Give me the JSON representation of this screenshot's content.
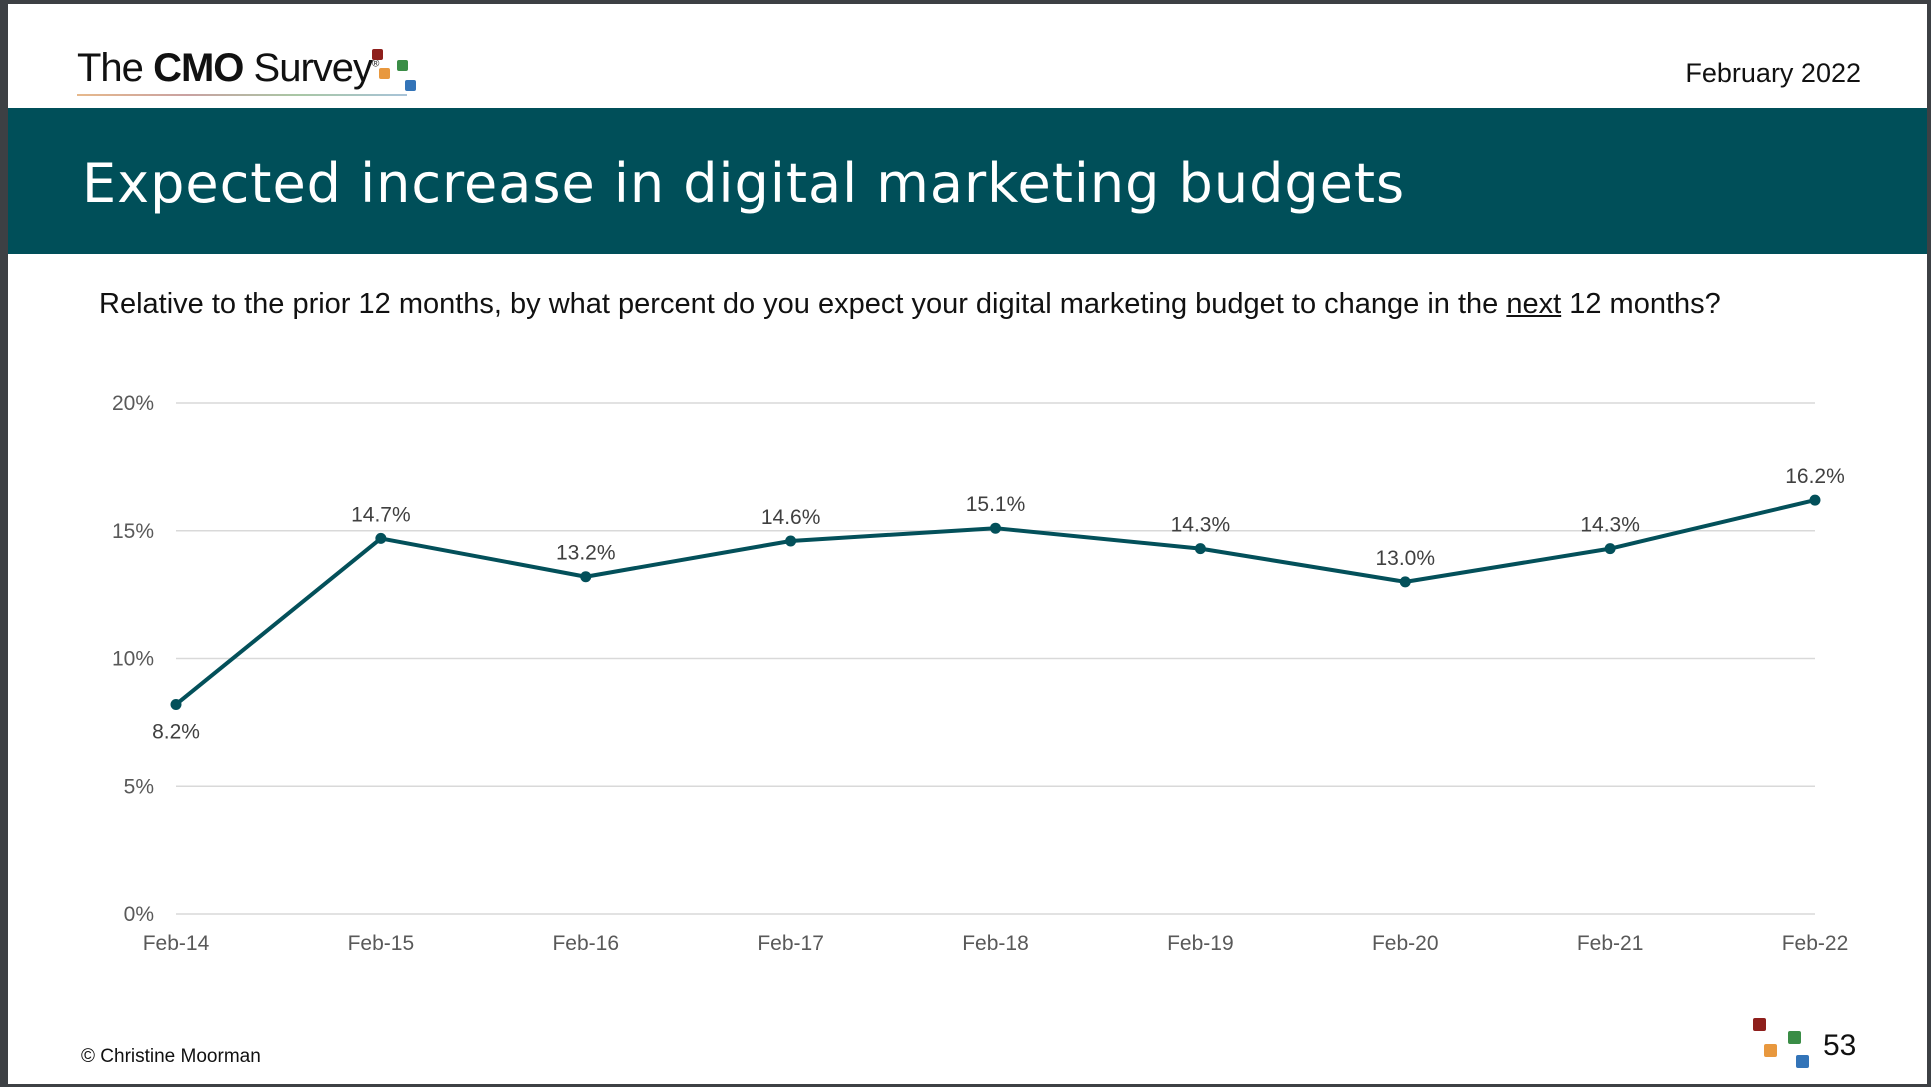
{
  "header": {
    "logo_text_pre": "The",
    "logo_text_bold": "CMO",
    "logo_text_post": "Survey",
    "logo_mark": "®",
    "date": "February 2022",
    "logo_colors": [
      "#8e1f1c",
      "#e8983e",
      "#3a8d46",
      "#3374b8"
    ]
  },
  "title": "Expected increase in digital marketing budgets",
  "question": {
    "before": "Relative to the prior 12 months, by what percent do you expect your digital marketing budget to change in the ",
    "underlined": "next",
    "after": " 12 months?"
  },
  "chart_data": {
    "type": "line",
    "categories": [
      "Feb-14",
      "Feb-15",
      "Feb-16",
      "Feb-17",
      "Feb-18",
      "Feb-19",
      "Feb-20",
      "Feb-21",
      "Feb-22"
    ],
    "values": [
      8.2,
      14.7,
      13.2,
      14.6,
      15.1,
      14.3,
      13.0,
      14.3,
      16.2
    ],
    "data_labels": [
      "8.2%",
      "14.7%",
      "13.2%",
      "14.6%",
      "15.1%",
      "14.3%",
      "13.0%",
      "14.3%",
      "16.2%"
    ],
    "ylim": [
      0,
      20
    ],
    "yticks": [
      0,
      5,
      10,
      15,
      20
    ],
    "ytick_labels": [
      "0%",
      "5%",
      "10%",
      "15%",
      "20%"
    ],
    "grid": true,
    "line_color": "#03505a"
  },
  "footer": {
    "copyright": "© Christine Moorman",
    "page_number": "53"
  },
  "colors": {
    "band": "#004f59",
    "accent": "#03505a"
  }
}
